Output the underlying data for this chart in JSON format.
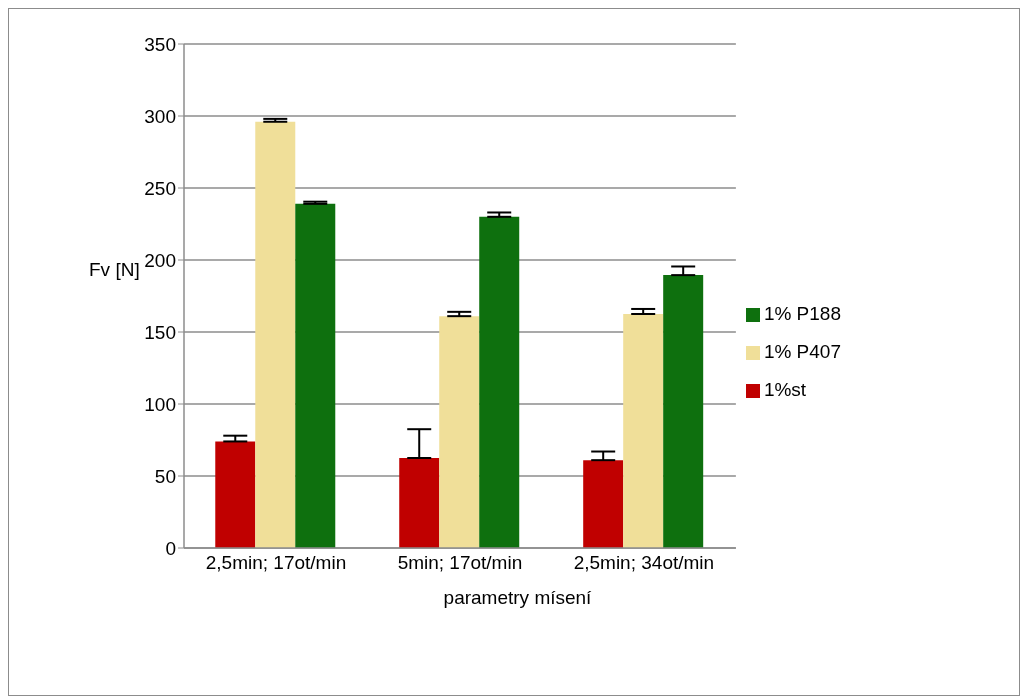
{
  "chart_data": {
    "type": "bar",
    "xlabel": "parametry mísení",
    "ylabel": "Fv [N]",
    "categories": [
      "2,5min; 17ot/min",
      "5min; 17ot/min",
      "2,5min; 34ot/min"
    ],
    "series": [
      {
        "name": "1%st",
        "color": "#c00000",
        "values": [
          74,
          62.5,
          61
        ],
        "errors": [
          [
            74,
            78
          ],
          [
            62.5,
            82.5
          ],
          [
            61,
            67
          ]
        ]
      },
      {
        "name": "1% P407",
        "color": "#f0df99",
        "values": [
          296,
          161,
          162.5
        ],
        "errors": [
          [
            296,
            298
          ],
          [
            161,
            164
          ],
          [
            162.5,
            166
          ]
        ]
      },
      {
        "name": "1% P188",
        "color": "#0e700e",
        "values": [
          239,
          230,
          189.5
        ],
        "errors": [
          [
            239,
            240.5
          ],
          [
            230,
            233
          ],
          [
            189.5,
            195.5
          ]
        ]
      }
    ],
    "ylim": [
      0,
      350
    ],
    "yticks": [
      0,
      50,
      100,
      150,
      200,
      250,
      300,
      350
    ],
    "grid": "y",
    "legend": "right"
  }
}
